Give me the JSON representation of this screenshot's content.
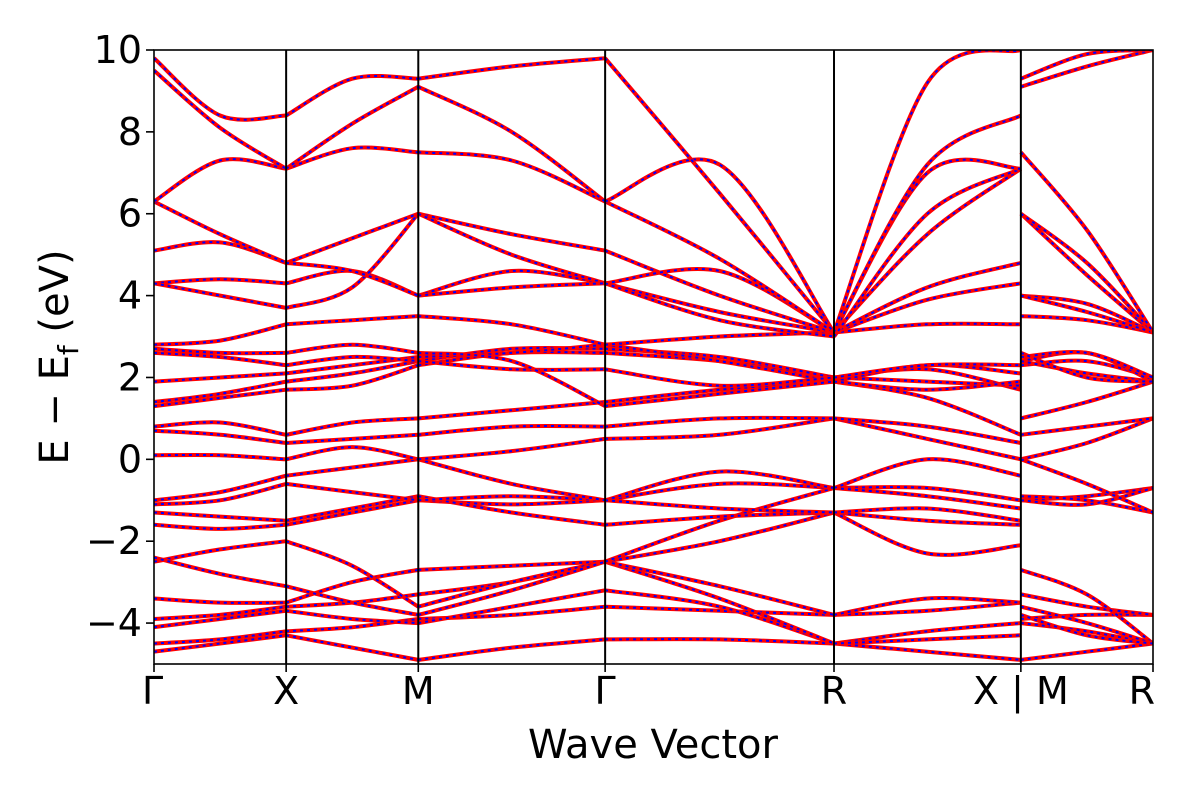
{
  "chart_data": {
    "type": "line",
    "title": "",
    "xlabel": "Wave Vector",
    "ylabel": "E − E_f (eV)",
    "ylabel_parts": {
      "main": "E − E",
      "sub": "f",
      "suffix": " (eV)"
    },
    "ylim": [
      -5,
      10
    ],
    "yticks": [
      -4,
      -2,
      0,
      2,
      4,
      6,
      8,
      10
    ],
    "ytick_labels": [
      "−4",
      "−2",
      "0",
      "2",
      "4",
      "6",
      "8",
      "10"
    ],
    "k_points": [
      {
        "label": "Γ",
        "position": 0.0
      },
      {
        "label": "X",
        "position": 1.0
      },
      {
        "label": "M",
        "position": 2.0
      },
      {
        "label": "Γ",
        "position": 3.414
      },
      {
        "label": "R",
        "position": 5.146
      },
      {
        "label": "X | M",
        "position": 6.56
      },
      {
        "label": "R",
        "position": 7.56
      }
    ],
    "xlim": [
      0,
      7.56
    ],
    "grid": false,
    "legend": "none",
    "colors": {
      "band_primary": "#ff0000",
      "band_dash": "#0000ff",
      "frame": "#000000"
    },
    "segments": [
      {
        "from": "Γ",
        "to": "X",
        "bands": [
          [
            -4.7,
            -4.5,
            -4.3
          ],
          [
            -4.5,
            -4.4,
            -4.2
          ],
          [
            -4.1,
            -3.9,
            -3.7
          ],
          [
            -3.9,
            -3.8,
            -3.6
          ],
          [
            -3.4,
            -3.5,
            -3.5
          ],
          [
            -2.5,
            -2.2,
            -2.0
          ],
          [
            -2.4,
            -2.8,
            -3.1
          ],
          [
            -1.6,
            -1.7,
            -1.6
          ],
          [
            -1.3,
            -1.4,
            -1.5
          ],
          [
            -1.1,
            -1.0,
            -0.6
          ],
          [
            -1.0,
            -0.8,
            -0.4
          ],
          [
            0.1,
            0.1,
            0.0
          ],
          [
            0.7,
            0.6,
            0.4
          ],
          [
            0.8,
            0.9,
            0.6
          ],
          [
            1.3,
            1.5,
            1.7
          ],
          [
            1.4,
            1.6,
            1.9
          ],
          [
            1.9,
            2.0,
            2.1
          ],
          [
            2.6,
            2.5,
            2.3
          ],
          [
            2.7,
            2.6,
            2.6
          ],
          [
            2.8,
            2.9,
            3.3
          ],
          [
            4.3,
            4.4,
            4.3
          ],
          [
            4.3,
            4.0,
            3.7
          ],
          [
            5.1,
            5.3,
            4.8
          ],
          [
            6.3,
            5.5,
            4.8
          ],
          [
            6.3,
            7.3,
            7.1
          ],
          [
            9.5,
            8.1,
            7.1
          ],
          [
            9.8,
            8.4,
            8.4
          ]
        ]
      },
      {
        "from": "X",
        "to": "M",
        "bands": [
          [
            -4.3,
            -4.6,
            -4.9
          ],
          [
            -4.2,
            -4.1,
            -3.9
          ],
          [
            -3.7,
            -3.9,
            -4.0
          ],
          [
            -3.6,
            -3.5,
            -3.3
          ],
          [
            -3.5,
            -3.0,
            -2.7
          ],
          [
            -2.0,
            -2.6,
            -3.6
          ],
          [
            -3.1,
            -3.5,
            -3.8
          ],
          [
            -1.6,
            -1.3,
            -1.0
          ],
          [
            -1.5,
            -1.2,
            -0.9
          ],
          [
            -0.6,
            -0.8,
            -1.0
          ],
          [
            -0.4,
            -0.2,
            0.0
          ],
          [
            0.0,
            0.3,
            0.0
          ],
          [
            0.4,
            0.5,
            0.6
          ],
          [
            0.6,
            0.9,
            1.0
          ],
          [
            1.7,
            1.8,
            2.3
          ],
          [
            1.9,
            2.1,
            2.4
          ],
          [
            2.1,
            2.3,
            2.5
          ],
          [
            2.3,
            2.5,
            2.4
          ],
          [
            2.6,
            2.8,
            2.6
          ],
          [
            3.3,
            3.4,
            3.5
          ],
          [
            4.3,
            4.6,
            4.0
          ],
          [
            3.7,
            4.2,
            6.0
          ],
          [
            4.8,
            5.4,
            6.0
          ],
          [
            4.8,
            4.6,
            4.0
          ],
          [
            7.1,
            7.6,
            7.5
          ],
          [
            7.1,
            8.2,
            9.1
          ],
          [
            8.4,
            9.3,
            9.3
          ]
        ]
      },
      {
        "from": "M",
        "to": "Γ",
        "bands": [
          [
            -4.9,
            -4.6,
            -4.4
          ],
          [
            -3.9,
            -3.8,
            -3.6
          ],
          [
            -4.0,
            -3.6,
            -3.2
          ],
          [
            -3.3,
            -3.0,
            -2.5
          ],
          [
            -2.7,
            -2.6,
            -2.5
          ],
          [
            -3.6,
            -3.0,
            -2.5
          ],
          [
            -3.8,
            -3.2,
            -2.5
          ],
          [
            -1.0,
            -1.1,
            -1.0
          ],
          [
            -0.9,
            -1.3,
            -1.6
          ],
          [
            -1.0,
            -0.9,
            -1.0
          ],
          [
            0.0,
            -0.6,
            -1.0
          ],
          [
            0.0,
            0.2,
            0.5
          ],
          [
            0.6,
            0.8,
            0.8
          ],
          [
            1.0,
            1.2,
            1.4
          ],
          [
            2.3,
            2.6,
            2.6
          ],
          [
            2.4,
            2.7,
            2.7
          ],
          [
            2.5,
            2.6,
            2.8
          ],
          [
            2.4,
            2.2,
            2.2
          ],
          [
            2.6,
            2.4,
            1.3
          ],
          [
            3.5,
            3.3,
            2.8
          ],
          [
            4.0,
            4.6,
            4.3
          ],
          [
            6.0,
            5.5,
            5.1
          ],
          [
            6.0,
            5.0,
            4.3
          ],
          [
            4.0,
            4.2,
            4.3
          ],
          [
            7.5,
            7.3,
            6.3
          ],
          [
            9.1,
            8.0,
            6.3
          ],
          [
            9.3,
            9.6,
            9.8
          ]
        ]
      },
      {
        "from": "Γ",
        "to": "R",
        "bands": [
          [
            -4.4,
            -4.4,
            -4.5
          ],
          [
            -3.6,
            -3.7,
            -3.8
          ],
          [
            -3.2,
            -3.6,
            -4.5
          ],
          [
            -2.5,
            -3.4,
            -4.5
          ],
          [
            -2.5,
            -3.1,
            -3.8
          ],
          [
            -2.5,
            -2.0,
            -1.3
          ],
          [
            -2.5,
            -1.5,
            -0.7
          ],
          [
            -1.0,
            -0.6,
            -0.7
          ],
          [
            -1.6,
            -1.4,
            -1.3
          ],
          [
            -1.0,
            -0.3,
            -0.7
          ],
          [
            -1.0,
            -1.2,
            -1.3
          ],
          [
            0.5,
            0.6,
            1.0
          ],
          [
            0.8,
            1.0,
            1.0
          ],
          [
            1.4,
            1.7,
            1.9
          ],
          [
            2.6,
            2.4,
            2.0
          ],
          [
            2.7,
            2.5,
            2.0
          ],
          [
            2.8,
            2.4,
            1.9
          ],
          [
            2.2,
            1.8,
            2.0
          ],
          [
            1.3,
            1.6,
            1.9
          ],
          [
            2.8,
            3.0,
            3.1
          ],
          [
            4.3,
            3.6,
            3.1
          ],
          [
            5.1,
            4.0,
            3.1
          ],
          [
            4.3,
            4.6,
            3.1
          ],
          [
            4.3,
            3.4,
            3.0
          ],
          [
            6.3,
            4.9,
            3.1
          ],
          [
            6.3,
            7.2,
            3.1
          ],
          [
            9.8,
            6.5,
            3.1
          ]
        ]
      },
      {
        "from": "R",
        "to": "X",
        "bands": [
          [
            -4.5,
            -4.7,
            -4.9
          ],
          [
            -3.8,
            -3.7,
            -3.5
          ],
          [
            -4.5,
            -4.2,
            -4.0
          ],
          [
            -4.5,
            -4.4,
            -4.3
          ],
          [
            -3.8,
            -3.4,
            -3.5
          ],
          [
            -1.3,
            -2.3,
            -2.1
          ],
          [
            -0.7,
            -0.7,
            -1.0
          ],
          [
            -0.7,
            -0.9,
            -1.2
          ],
          [
            -1.3,
            -1.5,
            -1.6
          ],
          [
            -0.7,
            0.0,
            -0.4
          ],
          [
            -1.3,
            -1.2,
            -1.5
          ],
          [
            1.0,
            0.5,
            0.0
          ],
          [
            1.0,
            0.8,
            0.4
          ],
          [
            1.9,
            1.5,
            0.6
          ],
          [
            2.0,
            2.2,
            1.7
          ],
          [
            2.0,
            1.9,
            1.8
          ],
          [
            1.9,
            2.3,
            2.1
          ],
          [
            2.0,
            2.3,
            2.3
          ],
          [
            1.9,
            1.7,
            1.9
          ],
          [
            3.1,
            3.3,
            3.3
          ],
          [
            3.1,
            3.9,
            4.3
          ],
          [
            3.1,
            4.2,
            4.8
          ],
          [
            3.1,
            5.5,
            7.1
          ],
          [
            3.0,
            6.0,
            7.1
          ],
          [
            3.1,
            7.0,
            7.1
          ],
          [
            3.1,
            7.2,
            8.4
          ],
          [
            3.1,
            9.2,
            10.0
          ]
        ]
      },
      {
        "from": "M",
        "to": "R",
        "bands": [
          [
            -4.9,
            -4.7,
            -4.5
          ],
          [
            -3.9,
            -3.8,
            -3.8
          ],
          [
            -4.0,
            -4.2,
            -4.5
          ],
          [
            -3.3,
            -3.6,
            -3.8
          ],
          [
            -2.7,
            -3.3,
            -4.5
          ],
          [
            -3.6,
            -4.0,
            -4.5
          ],
          [
            -3.8,
            -4.3,
            -4.5
          ],
          [
            -1.0,
            -0.9,
            -0.7
          ],
          [
            -0.9,
            -1.0,
            -1.3
          ],
          [
            -1.0,
            -1.1,
            -0.7
          ],
          [
            0.0,
            0.4,
            1.0
          ],
          [
            0.0,
            -0.6,
            -1.3
          ],
          [
            0.6,
            0.8,
            1.0
          ],
          [
            1.0,
            1.4,
            1.9
          ],
          [
            2.3,
            2.4,
            2.0
          ],
          [
            2.4,
            2.6,
            1.9
          ],
          [
            2.5,
            2.6,
            2.0
          ],
          [
            2.4,
            2.1,
            1.9
          ],
          [
            2.6,
            2.0,
            1.9
          ],
          [
            3.5,
            3.4,
            3.1
          ],
          [
            4.0,
            3.8,
            3.1
          ],
          [
            6.0,
            4.5,
            3.1
          ],
          [
            6.0,
            4.8,
            3.1
          ],
          [
            4.0,
            3.6,
            3.1
          ],
          [
            7.5,
            5.6,
            3.1
          ],
          [
            9.1,
            9.6,
            10.0
          ],
          [
            9.3,
            9.9,
            10.0
          ]
        ]
      }
    ]
  }
}
